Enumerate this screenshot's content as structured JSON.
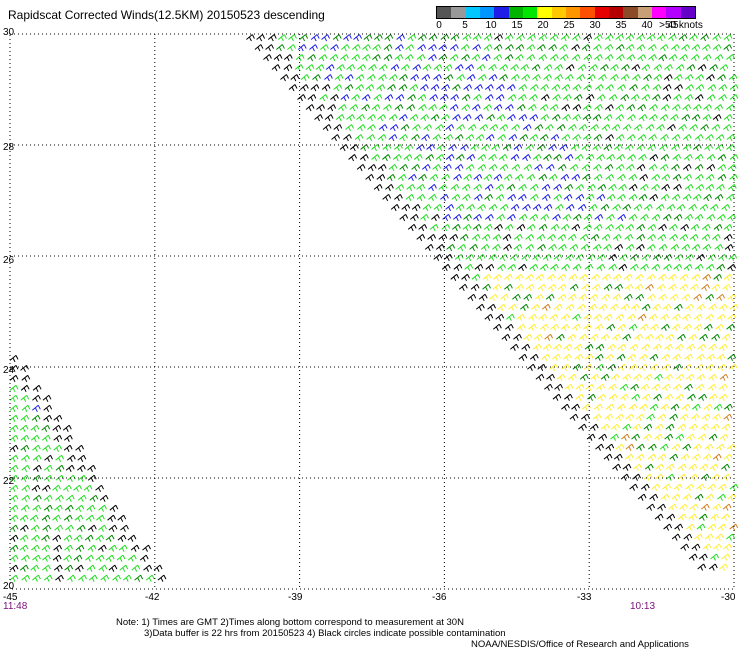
{
  "title": "Rapidscat Corrected Winds(12.5KM) 20150523 descending",
  "legend": {
    "colors": [
      "#555555",
      "#999999",
      "#00c8ff",
      "#0096ff",
      "#1e1ee6",
      "#00b400",
      "#00e600",
      "#ffff00",
      "#ffc800",
      "#ff9600",
      "#ff5000",
      "#e60000",
      "#b40000",
      "#8c4b28",
      "#c8a078",
      "#ff00ff",
      "#b400ff",
      "#6400c8"
    ],
    "labels": [
      "0",
      "5",
      "10",
      "15",
      "20",
      "25",
      "30",
      "35",
      "40",
      "45",
      ">50 knots"
    ]
  },
  "map": {
    "lat_labels": [
      "30",
      "28",
      "26",
      "24",
      "22",
      "20"
    ],
    "lon_labels": [
      "-45",
      "-42",
      "-39",
      "-36",
      "-33",
      "-30"
    ],
    "lat_range": [
      20,
      30
    ],
    "lon_range": [
      -45,
      -30
    ],
    "grid": true
  },
  "times": {
    "left": "11:48",
    "right": "10:13"
  },
  "notes": {
    "line1": "Note: 1) Times are GMT 2)Times along bottom correspond to measurement at 30N",
    "line2": "3)Data buffer is 22 hrs from 20150523 4) Black circles indicate possible contamination",
    "line3": "NOAA/NESDIS/Office of Research and Applications"
  },
  "swaths": [
    {
      "name": "right-swath",
      "lat_min": 20.3,
      "lat_max": 30,
      "lon_edge_at_30": -40.2,
      "lon_edge_at_20": -30.4
    },
    {
      "name": "left-swath",
      "lat_min": 20,
      "lat_max": 24.3,
      "lon_edge_at_24": -45,
      "lon_edge_at_20": -42
    }
  ]
}
